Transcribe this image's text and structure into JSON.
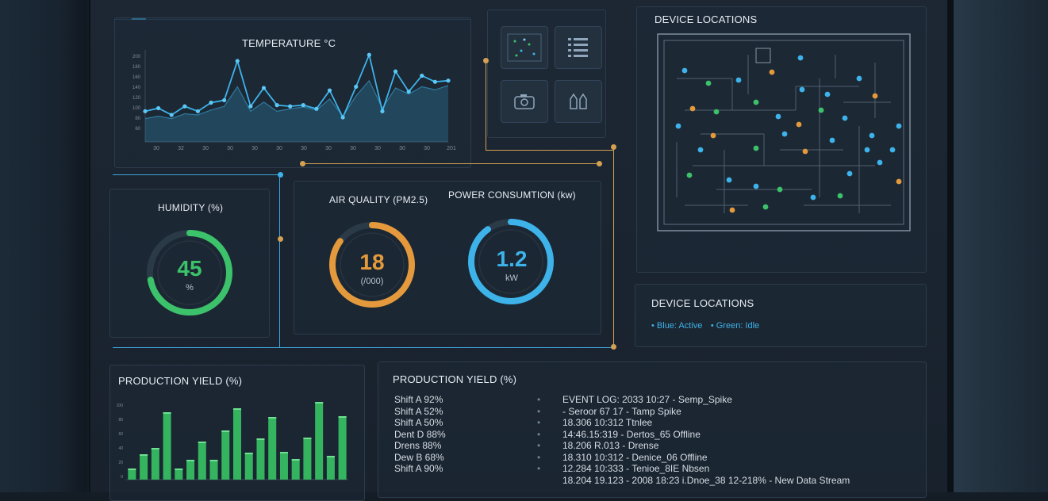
{
  "app_title": "",
  "temperature": {
    "title": "TEMPERATURE °C",
    "y_ticks": [
      "200",
      "180",
      "160",
      "140",
      "120",
      "100",
      "80",
      "60"
    ],
    "x_ticks": [
      "30",
      "32",
      "30",
      "30",
      "30",
      "30",
      "30",
      "30",
      "30",
      "30",
      "30",
      "30",
      "201"
    ]
  },
  "humidity": {
    "title": "HUMIDITY (%)",
    "value": "45",
    "unit": "%",
    "fraction": 0.72
  },
  "air_quality": {
    "title": "AIR QUALITY (PM2.5)",
    "value": "18",
    "unit": "(/000)",
    "fraction": 0.85
  },
  "power": {
    "title": "POWER CONSUMTION (kw)",
    "value": "1.2",
    "unit": "kW",
    "fraction": 0.9
  },
  "device_map": {
    "title": "DEVICE LOCATIONS"
  },
  "device_legend": {
    "title": "DEVICE LOCATIONS",
    "items": [
      "• Blue: Active",
      "• Green: Idle"
    ]
  },
  "production_chart": {
    "title": "PRODUCTION YIELD (%)",
    "y_ticks": [
      "100",
      "80",
      "60",
      "40",
      "20",
      "0"
    ]
  },
  "production_log": {
    "title": "PRODUCTION YIELD (%)",
    "shifts": [
      "Shift A 92%",
      "Shift A 52%",
      "Shift A 50%",
      "Dent D 88%",
      "Drens 88%",
      "Dew B 68%",
      "Shift A 90%"
    ],
    "events": [
      "EVENT LOG: 2033 10:27 - Semp_Spike",
      "- Seroor 67 17 - Tamp Spike",
      "18.306 10:312 Ttnlee",
      "14:46.15:319 - Dertos_65 Offline",
      "18.206 R.013 - Drense",
      "18.310 10:312 - Denice_06 Offline",
      "12.284 10:333 - Tenioe_8IE Nbsen",
      "18.204 19.123 - 2008 18:23 i.Dnoe_38 12-218% - New Data Stream"
    ]
  },
  "chart_data": [
    {
      "type": "line",
      "title": "TEMPERATURE °C",
      "x": [
        0,
        1,
        2,
        3,
        4,
        5,
        6,
        7,
        8,
        9,
        10,
        11,
        12,
        13,
        14,
        15,
        16,
        17,
        18,
        19,
        20,
        21,
        22,
        23
      ],
      "series": [
        {
          "values": [
            110,
            115,
            104,
            118,
            110,
            124,
            128,
            192,
            118,
            148,
            120,
            118,
            120,
            114,
            144,
            100,
            150,
            202,
            110,
            175,
            142,
            168,
            158,
            160
          ]
        },
        {
          "values": [
            98,
            102,
            98,
            106,
            104,
            112,
            118,
            150,
            110,
            125,
            110,
            114,
            117,
            112,
            130,
            102,
            135,
            160,
            115,
            148,
            138,
            150,
            145,
            152
          ]
        }
      ],
      "ylim": [
        60,
        210
      ]
    },
    {
      "type": "bar",
      "title": "PRODUCTION YIELD (%)",
      "values": [
        14,
        32,
        40,
        85,
        14,
        25,
        48,
        25,
        62,
        90,
        34,
        52,
        79,
        35,
        26,
        53,
        98,
        30,
        80
      ],
      "ylim": [
        0,
        100
      ]
    }
  ],
  "colors": {
    "accent_blue": "#3db3ea",
    "green": "#3cc26a",
    "orange": "#e49a3c",
    "gauge_track": "#2b3a47"
  }
}
